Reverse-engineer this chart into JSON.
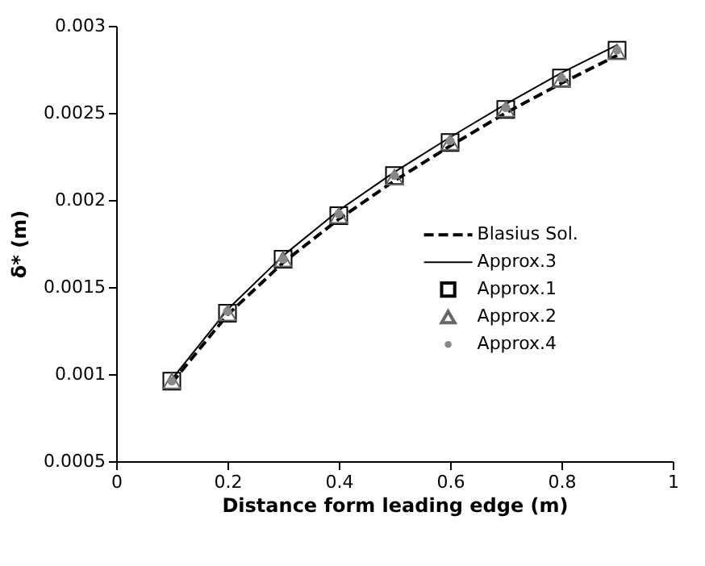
{
  "chart_data": {
    "type": "line",
    "xlabel": "Distance form leading edge (m)",
    "ylabel": "δ* (m)",
    "x": [
      0.1,
      0.2,
      0.3,
      0.4,
      0.5,
      0.6,
      0.7,
      0.8,
      0.9
    ],
    "series": [
      {
        "name": "Blasius Sol.",
        "line_style": "dashed",
        "marker": "none",
        "color": "#000000",
        "values": [
          0.00095,
          0.00134,
          0.00164,
          0.00189,
          0.00211,
          0.00231,
          0.0025,
          0.00267,
          0.00283
        ]
      },
      {
        "name": "Approx.3",
        "line_style": "solid",
        "marker": "none",
        "color": "#000000",
        "values": [
          0.00097,
          0.00137,
          0.00168,
          0.00194,
          0.00216,
          0.00236,
          0.00255,
          0.00273,
          0.00289
        ]
      },
      {
        "name": "Approx.1",
        "type": "scatter",
        "marker": "square",
        "color": "#000000",
        "values": [
          0.00096,
          0.00135,
          0.00166,
          0.00191,
          0.00214,
          0.00233,
          0.00252,
          0.0027,
          0.00286
        ]
      },
      {
        "name": "Approx.2",
        "type": "scatter",
        "marker": "triangle",
        "color": "#666666",
        "values": [
          0.00096,
          0.00135,
          0.00166,
          0.00191,
          0.00213,
          0.00233,
          0.00252,
          0.00269,
          0.00285
        ]
      },
      {
        "name": "Approx.4",
        "type": "scatter",
        "marker": "circle",
        "color": "#888888",
        "values": [
          0.00096,
          0.00136,
          0.00166,
          0.00192,
          0.00214,
          0.00234,
          0.00253,
          0.0027,
          0.00286
        ]
      }
    ],
    "xlim": [
      0,
      1
    ],
    "xticks": [
      0,
      0.2,
      0.4,
      0.6,
      0.8,
      1
    ],
    "ylim": [
      0.0005,
      0.003
    ],
    "yticks": [
      0.0005,
      0.001,
      0.0015,
      0.002,
      0.0025,
      0.003
    ],
    "grid": false,
    "legend": "right"
  }
}
